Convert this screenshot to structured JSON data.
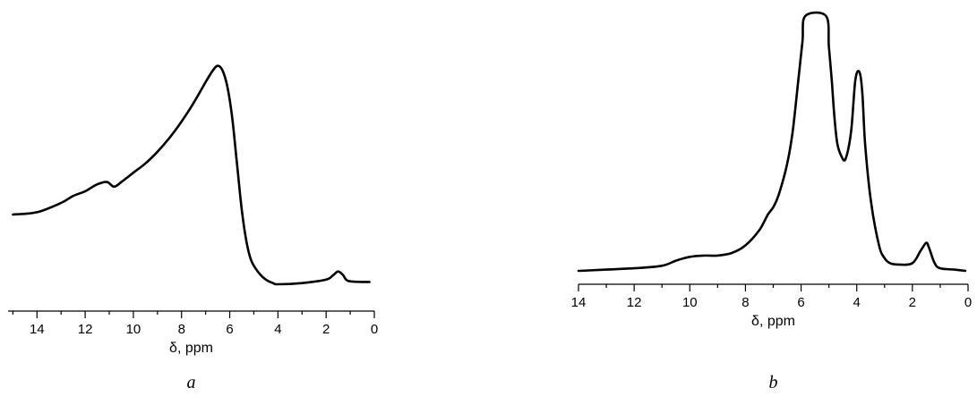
{
  "chart_data": [
    {
      "type": "line",
      "panel_label": "a",
      "xlabel": "δ, ppm",
      "ylabel": "",
      "xlim": [
        15.2,
        0
      ],
      "x_reversed": true,
      "x_ticks": [
        14,
        12,
        10,
        8,
        6,
        4,
        2,
        0
      ],
      "x_minor_step": 1,
      "ylim": [
        0,
        1.05
      ],
      "y_axis_shown": false,
      "grid": false,
      "legend": "none",
      "line_color": "#000000",
      "series": [
        {
          "x": [
            15.0,
            14.0,
            13.0,
            12.5,
            12.0,
            11.5,
            11.1,
            10.8,
            10.5,
            10.0,
            9.5,
            9.0,
            8.5,
            8.0,
            7.5,
            7.0,
            6.7,
            6.5,
            6.3,
            6.1,
            5.9,
            5.7,
            5.5,
            5.3,
            5.1,
            4.8,
            4.5,
            4.2,
            4.0,
            3.0,
            2.0,
            1.7,
            1.5,
            1.3,
            1.1,
            0.5,
            0.2
          ],
          "y": [
            0.3,
            0.31,
            0.35,
            0.38,
            0.4,
            0.43,
            0.44,
            0.42,
            0.44,
            0.48,
            0.52,
            0.57,
            0.63,
            0.7,
            0.78,
            0.87,
            0.92,
            0.94,
            0.92,
            0.85,
            0.72,
            0.52,
            0.32,
            0.18,
            0.1,
            0.05,
            0.02,
            0.005,
            0.0,
            0.005,
            0.02,
            0.04,
            0.055,
            0.04,
            0.015,
            0.01,
            0.01
          ]
        }
      ]
    },
    {
      "type": "line",
      "panel_label": "b",
      "xlabel": "δ, ppm",
      "ylabel": "",
      "xlim": [
        14,
        0
      ],
      "x_reversed": true,
      "x_ticks": [
        14,
        12,
        10,
        8,
        6,
        4,
        2,
        0
      ],
      "x_minor_step": 1,
      "ylim": [
        0,
        1.0
      ],
      "y_axis_shown": false,
      "grid": false,
      "legend": "none",
      "line_color": "#000000",
      "series": [
        {
          "x": [
            14.0,
            12.0,
            11.0,
            10.5,
            10.0,
            9.5,
            9.0,
            8.5,
            8.0,
            7.5,
            7.2,
            7.0,
            6.8,
            6.5,
            6.3,
            6.1,
            5.95,
            5.85,
            5.1,
            5.0,
            4.9,
            4.8,
            4.7,
            4.55,
            4.4,
            4.2,
            4.05,
            3.9,
            3.8,
            3.7,
            3.5,
            3.2,
            3.0,
            2.8,
            2.5,
            2.0,
            1.7,
            1.5,
            1.4,
            1.2,
            1.0,
            0.5,
            0.1
          ],
          "y": [
            0.0,
            0.01,
            0.02,
            0.04,
            0.055,
            0.06,
            0.06,
            0.07,
            0.1,
            0.16,
            0.22,
            0.25,
            0.3,
            0.42,
            0.55,
            0.75,
            0.9,
            1.0,
            1.0,
            0.88,
            0.75,
            0.6,
            0.5,
            0.45,
            0.44,
            0.55,
            0.75,
            0.78,
            0.7,
            0.5,
            0.28,
            0.1,
            0.05,
            0.03,
            0.025,
            0.03,
            0.08,
            0.11,
            0.09,
            0.03,
            0.01,
            0.005,
            0.0
          ]
        }
      ]
    }
  ]
}
